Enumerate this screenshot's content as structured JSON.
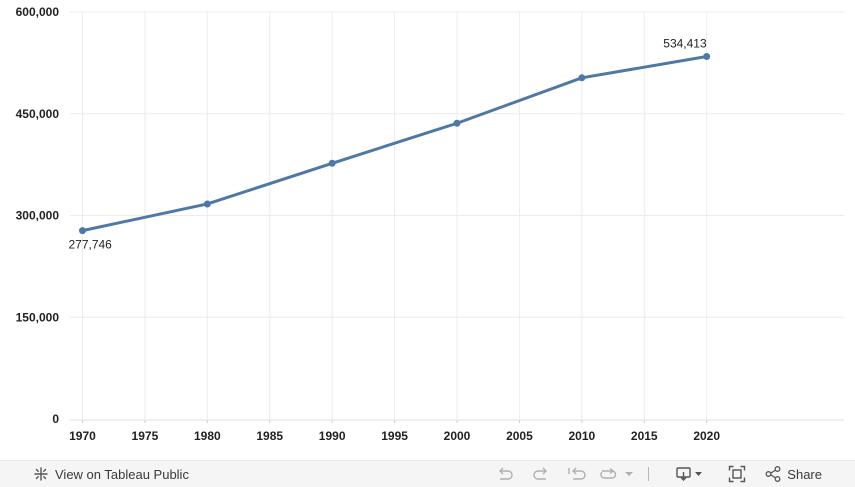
{
  "chart_data": {
    "type": "line",
    "x": [
      1970,
      1980,
      1990,
      2000,
      2010,
      2020
    ],
    "series": [
      {
        "values": [
          277746,
          317000,
          377000,
          436000,
          503000,
          534413
        ]
      }
    ],
    "data_labels": [
      {
        "x": 1970,
        "text": "277,746"
      },
      {
        "x": 2020,
        "text": "534,413"
      }
    ],
    "xticks": [
      1970,
      1975,
      1980,
      1985,
      1990,
      1995,
      2000,
      2005,
      2010,
      2015,
      2020
    ],
    "xtick_labels": [
      "1970",
      "1975",
      "1980",
      "1985",
      "1990",
      "1995",
      "2000",
      "2005",
      "2010",
      "2015",
      "2020"
    ],
    "yticks": [
      0,
      150000,
      300000,
      450000,
      600000
    ],
    "ytick_labels": [
      "0",
      "150,000",
      "300,000",
      "450,000",
      "600,000"
    ],
    "xlim": [
      1969,
      2031
    ],
    "ylim": [
      0,
      600000
    ],
    "grid": true,
    "legend": "none",
    "line_color": "#4e79a7"
  },
  "toolbar": {
    "view_label": "View on Tableau Public",
    "share_label": "Share",
    "icons": [
      "tableau-logo-icon",
      "undo-icon",
      "redo-icon",
      "revert-icon",
      "refresh-icon",
      "pause-dropdown-icon",
      "download-icon",
      "fullscreen-icon",
      "share-icon"
    ]
  }
}
